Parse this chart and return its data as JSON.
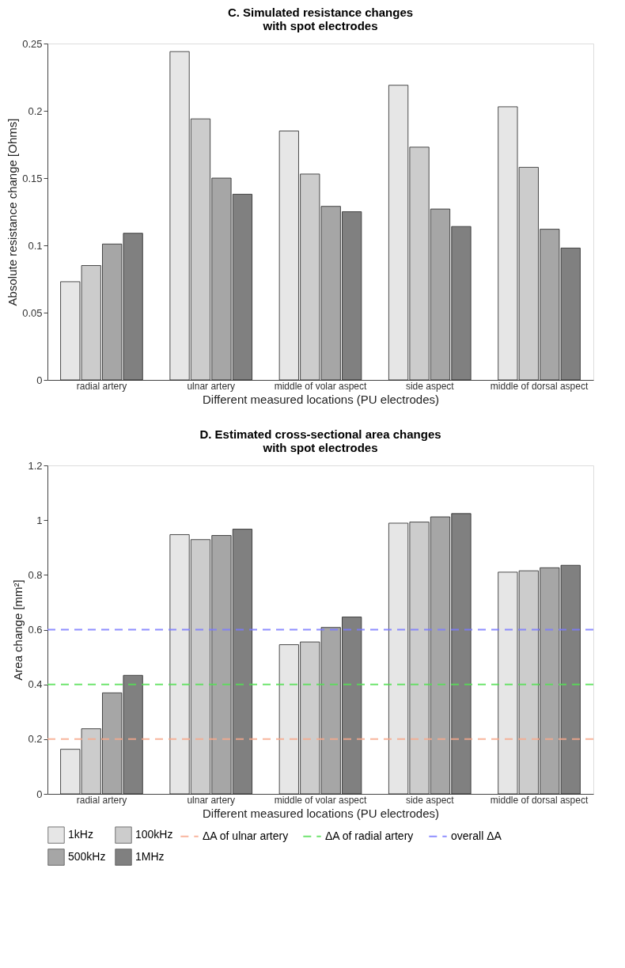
{
  "chart_data": [
    {
      "type": "bar",
      "title": "C. Simulated resistance changes\n      with spot electrodes",
      "xlabel": "Different measured locations (PU electrodes)",
      "ylabel": "Absolute resistance change [Ohms]",
      "categories": [
        "radial artery",
        "ulnar artery",
        "middle of volar aspect",
        "side aspect",
        "middle of dorsal aspect"
      ],
      "series": [
        {
          "name": "1kHz",
          "color": "#e6e6e6",
          "values": [
            0.073,
            0.244,
            0.185,
            0.219,
            0.203
          ]
        },
        {
          "name": "100kHz",
          "color": "#cccccc",
          "values": [
            0.085,
            0.194,
            0.153,
            0.173,
            0.158
          ]
        },
        {
          "name": "500kHz",
          "color": "#a6a6a6",
          "values": [
            0.101,
            0.15,
            0.129,
            0.127,
            0.112
          ]
        },
        {
          "name": "1MHz",
          "color": "#808080",
          "values": [
            0.109,
            0.138,
            0.125,
            0.114,
            0.098
          ]
        }
      ],
      "ylim": [
        0,
        0.25
      ],
      "yticks": [
        0,
        0.05,
        0.1,
        0.15,
        0.2,
        0.25
      ],
      "grid": false,
      "legend": "bottom"
    },
    {
      "type": "bar",
      "title": "D. Estimated cross-sectional area changes\n      with spot electrodes",
      "xlabel": "Different measured locations (PU electrodes)",
      "ylabel": "Area change [mm²]",
      "categories": [
        "radial artery",
        "ulnar artery",
        "middle of volar aspect",
        "side aspect",
        "middle of dorsal aspect"
      ],
      "series": [
        {
          "name": "1kHz",
          "color": "#e6e6e6",
          "values": [
            0.163,
            0.947,
            0.545,
            0.989,
            0.81
          ]
        },
        {
          "name": "100kHz",
          "color": "#cccccc",
          "values": [
            0.238,
            0.929,
            0.555,
            0.993,
            0.815
          ]
        },
        {
          "name": "500kHz",
          "color": "#a6a6a6",
          "values": [
            0.369,
            0.944,
            0.608,
            1.012,
            0.826
          ]
        },
        {
          "name": "1MHz",
          "color": "#808080",
          "values": [
            0.433,
            0.967,
            0.646,
            1.024,
            0.835
          ]
        }
      ],
      "ref_lines": [
        {
          "axis": "y",
          "value": 0.2,
          "label": "ΔA of ulnar artery",
          "color": "#f7a98c",
          "line_style": "dashed"
        },
        {
          "axis": "y",
          "value": 0.4,
          "label": "ΔA of radial artery",
          "color": "#55e055",
          "line_style": "dashed"
        },
        {
          "axis": "y",
          "value": 0.6,
          "label": "overall ΔA",
          "color": "#7b7bff",
          "line_style": "dashed"
        }
      ],
      "ylim": [
        0,
        1.2
      ],
      "yticks": [
        0,
        0.2,
        0.4,
        0.6,
        0.8,
        1,
        1.2
      ],
      "grid": false,
      "legend": "bottom"
    }
  ]
}
